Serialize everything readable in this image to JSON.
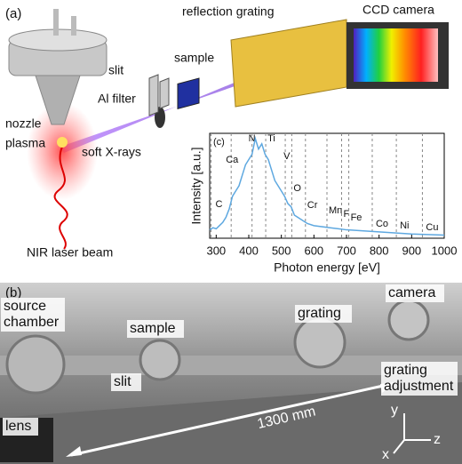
{
  "schematic": {
    "panel_label": "(a)",
    "labels": {
      "reflection_grating": "reflection grating",
      "ccd_camera": "CCD camera",
      "sample": "sample",
      "slit": "slit",
      "al_filter": "Al filter",
      "nozzle": "nozzle",
      "plasma": "plasma",
      "soft_xrays": "soft X-rays",
      "nir_laser": "NIR laser beam"
    }
  },
  "chart_data": {
    "type": "line",
    "panel_label": "(c)",
    "x_label": "Photon energy [eV]",
    "y_label": "Intensity [a.u.]",
    "color": "#5ea8e0",
    "x": [
      280,
      290,
      300,
      310,
      320,
      330,
      340,
      350,
      360,
      370,
      380,
      390,
      400,
      410,
      420,
      430,
      440,
      450,
      460,
      470,
      480,
      490,
      500,
      510,
      520,
      530,
      540,
      560,
      580,
      600,
      650,
      700,
      800,
      900,
      1000
    ],
    "values": [
      0.08,
      0.1,
      0.09,
      0.12,
      0.15,
      0.2,
      0.28,
      0.4,
      0.45,
      0.5,
      0.6,
      0.7,
      0.75,
      0.8,
      0.95,
      0.85,
      0.9,
      0.8,
      0.75,
      0.65,
      0.55,
      0.5,
      0.45,
      0.4,
      0.33,
      0.3,
      0.22,
      0.18,
      0.14,
      0.12,
      0.1,
      0.08,
      0.06,
      0.04,
      0.03
    ],
    "xlim": [
      280,
      1000
    ],
    "ylim": [
      0,
      1
    ],
    "xticks": [
      300,
      400,
      500,
      600,
      700,
      800,
      900,
      1000
    ],
    "annotations": [
      {
        "label": "C",
        "x": 284
      },
      {
        "label": "Ca",
        "x": 346
      },
      {
        "label": "N",
        "x": 410
      },
      {
        "label": "Ti",
        "x": 452
      },
      {
        "label": "V",
        "x": 512
      },
      {
        "label": "O",
        "x": 532
      },
      {
        "label": "Cr",
        "x": 574
      },
      {
        "label": "Mn",
        "x": 640
      },
      {
        "label": "F",
        "x": 685
      },
      {
        "label": "Fe",
        "x": 707
      },
      {
        "label": "Co",
        "x": 779
      },
      {
        "label": "Ni",
        "x": 853
      },
      {
        "label": "Cu",
        "x": 933
      }
    ]
  },
  "photo": {
    "panel_label": "(b)",
    "labels": {
      "source_chamber": [
        "source",
        "chamber"
      ],
      "sample": "sample",
      "camera": "camera",
      "grating": "grating",
      "grating_adjustment": [
        "grating",
        "adjustment"
      ],
      "slit": "slit",
      "lens": "lens",
      "length": "1300 mm",
      "axis_y": "y",
      "axis_z": "z",
      "axis_x": "x"
    }
  }
}
